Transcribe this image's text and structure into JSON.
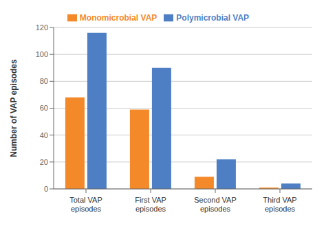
{
  "chart_data": {
    "type": "bar",
    "categories": [
      "Total VAP episodes",
      "First VAP episodes",
      "Second VAP episodes",
      "Third VAP episodes"
    ],
    "series": [
      {
        "name": "Monomicrobial VAP",
        "color": "#F4892A",
        "values": [
          68,
          59,
          9,
          1
        ]
      },
      {
        "name": "Polymicrobial VAP",
        "color": "#4E7FC4",
        "values": [
          116,
          90,
          22,
          4
        ]
      }
    ],
    "ylabel": "Number of VAP episodes",
    "ylim": [
      0,
      120
    ],
    "yticks": [
      0,
      20,
      40,
      60,
      80,
      100,
      120
    ],
    "grid": true,
    "legend": "top"
  }
}
